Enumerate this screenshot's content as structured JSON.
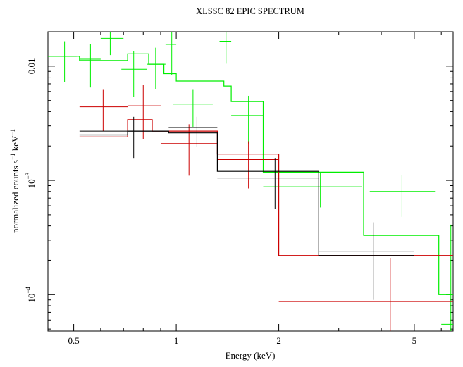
{
  "chart_data": {
    "type": "scatter",
    "title": "XLSSC 82 EPIC SPECTRUM",
    "xlabel": "Energy (keV)",
    "ylabel_parts": {
      "a": "normalized counts s",
      "a_sup": "−1",
      "b": " keV",
      "b_sup": "−1"
    },
    "x_scale": "log",
    "y_scale": "log",
    "xlim": [
      0.42,
      6.5
    ],
    "ylim": [
      4.8e-05,
      0.02
    ],
    "x_ticks": [
      {
        "value": 0.5,
        "label": "0.5"
      },
      {
        "value": 1,
        "label": "1"
      },
      {
        "value": 2,
        "label": "2"
      },
      {
        "value": 5,
        "label": "5"
      }
    ],
    "y_ticks": [
      {
        "value": 0.0001,
        "base": "10",
        "exp": "−4"
      },
      {
        "value": 0.001,
        "base": "10",
        "exp": "−3"
      },
      {
        "value": 0.01,
        "label": "0.01"
      }
    ],
    "series": [
      {
        "color": "#00ee00",
        "points": [
          {
            "x": 0.47,
            "xlo": 0.42,
            "xhi": 0.51,
            "y": 0.0122,
            "ylo": 0.0072,
            "yhi": 0.0165
          },
          {
            "x": 0.56,
            "xlo": 0.52,
            "xhi": 0.6,
            "y": 0.0115,
            "ylo": 0.0065,
            "yhi": 0.0155
          },
          {
            "x": 0.64,
            "xlo": 0.6,
            "xhi": 0.7,
            "y": 0.0175,
            "ylo": 0.0125,
            "yhi": 0.02
          },
          {
            "x": 0.75,
            "xlo": 0.69,
            "xhi": 0.82,
            "y": 0.0094,
            "ylo": 0.0054,
            "yhi": 0.0135
          },
          {
            "x": 0.87,
            "xlo": 0.82,
            "xhi": 0.93,
            "y": 0.0104,
            "ylo": 0.0063,
            "yhi": 0.0145
          },
          {
            "x": 0.97,
            "xlo": 0.93,
            "xhi": 1.0,
            "y": 0.0155,
            "ylo": 0.0084,
            "yhi": 0.02
          },
          {
            "x": 1.12,
            "xlo": 0.98,
            "xhi": 1.28,
            "y": 0.00465,
            "ylo": 0.0029,
            "yhi": 0.0062
          },
          {
            "x": 1.4,
            "xlo": 1.34,
            "xhi": 1.45,
            "y": 0.0165,
            "ylo": 0.0105,
            "yhi": 0.02
          },
          {
            "x": 1.63,
            "xlo": 1.45,
            "xhi": 1.8,
            "y": 0.0037,
            "ylo": 0.0021,
            "yhi": 0.0055
          },
          {
            "x": 2.65,
            "xlo": 1.8,
            "xhi": 3.5,
            "y": 0.00088,
            "ylo": 0.00058,
            "yhi": 0.00118
          },
          {
            "x": 4.6,
            "xlo": 3.7,
            "xhi": 5.75,
            "y": 0.0008,
            "ylo": 0.00048,
            "yhi": 0.00112
          },
          {
            "x": 6.4,
            "xlo": 6.0,
            "xhi": 6.5,
            "y": 5.5e-05,
            "ylo": 4.8e-05,
            "yhi": 0.00041
          }
        ],
        "model": [
          [
            0.42,
            0.0122
          ],
          [
            0.52,
            0.0112
          ],
          [
            0.72,
            0.0128
          ],
          [
            0.83,
            0.0104
          ],
          [
            0.92,
            0.0086
          ],
          [
            1.0,
            0.0074
          ],
          [
            1.38,
            0.0067
          ],
          [
            1.45,
            0.0049
          ],
          [
            1.8,
            0.0044
          ],
          [
            1.8,
            0.00118
          ],
          [
            3.55,
            0.00118
          ],
          [
            3.55,
            0.00033
          ],
          [
            5.9,
            0.00033
          ],
          [
            5.9,
            0.0001
          ],
          [
            6.5,
            0.0001
          ]
        ]
      },
      {
        "color": "#cc0000",
        "points": [
          {
            "x": 0.61,
            "xlo": 0.52,
            "xhi": 0.72,
            "y": 0.0044,
            "ylo": 0.0027,
            "yhi": 0.0062
          },
          {
            "x": 0.8,
            "xlo": 0.72,
            "xhi": 0.9,
            "y": 0.0045,
            "ylo": 0.0023,
            "yhi": 0.0068
          },
          {
            "x": 1.09,
            "xlo": 0.9,
            "xhi": 1.32,
            "y": 0.0021,
            "ylo": 0.0011,
            "yhi": 0.0031
          },
          {
            "x": 1.63,
            "xlo": 1.32,
            "xhi": 2.0,
            "y": 0.00152,
            "ylo": 0.00085,
            "yhi": 0.0022
          },
          {
            "x": 4.25,
            "xlo": 2.0,
            "xhi": 6.5,
            "y": 8.7e-05,
            "ylo": 4.8e-05,
            "yhi": 0.00021
          }
        ],
        "model": [
          [
            0.52,
            0.0024
          ],
          [
            0.72,
            0.0024
          ],
          [
            0.72,
            0.0034
          ],
          [
            0.85,
            0.0034
          ],
          [
            0.85,
            0.0027
          ],
          [
            1.32,
            0.0027
          ],
          [
            1.32,
            0.0017
          ],
          [
            2.0,
            0.0017
          ],
          [
            2.0,
            0.00022
          ],
          [
            6.5,
            0.00022
          ]
        ]
      },
      {
        "color": "#000000",
        "points": [
          {
            "x": 0.75,
            "xlo": 0.52,
            "xhi": 0.95,
            "y": 0.0027,
            "ylo": 0.00155,
            "yhi": 0.0036
          },
          {
            "x": 1.15,
            "xlo": 0.95,
            "xhi": 1.32,
            "y": 0.0029,
            "ylo": 0.00195,
            "yhi": 0.0036
          },
          {
            "x": 1.95,
            "xlo": 1.32,
            "xhi": 2.62,
            "y": 0.00105,
            "ylo": 0.00056,
            "yhi": 0.00155
          },
          {
            "x": 3.8,
            "xlo": 2.62,
            "xhi": 5.0,
            "y": 0.00024,
            "ylo": 9e-05,
            "yhi": 0.00043
          }
        ],
        "model": [
          [
            0.52,
            0.0025
          ],
          [
            0.72,
            0.0025
          ],
          [
            0.72,
            0.0027
          ],
          [
            0.95,
            0.0027
          ],
          [
            0.95,
            0.0026
          ],
          [
            1.32,
            0.0026
          ],
          [
            1.32,
            0.0012
          ],
          [
            2.62,
            0.0012
          ],
          [
            2.62,
            0.00022
          ],
          [
            5.0,
            0.00022
          ]
        ]
      }
    ]
  }
}
